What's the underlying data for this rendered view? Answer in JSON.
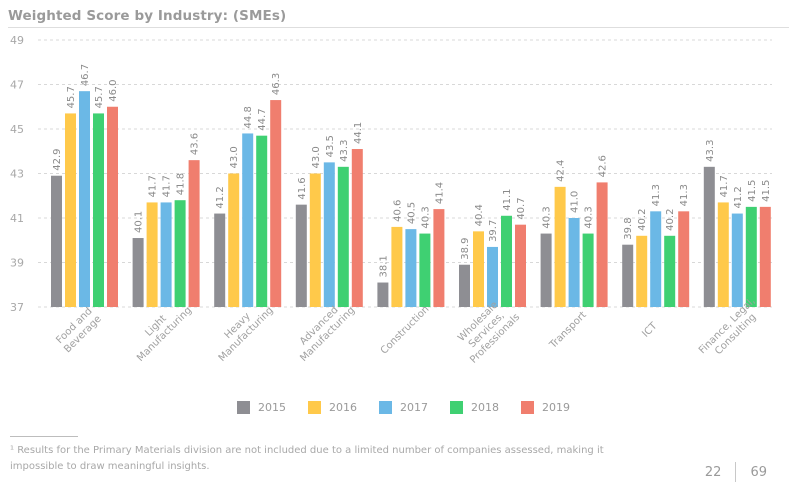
{
  "chart_data": {
    "type": "bar",
    "title": "Weighted Score by Industry: (SMEs)",
    "xlabel": "",
    "ylabel": "",
    "ylim": [
      37,
      49
    ],
    "yticks": [
      37,
      39,
      41,
      43,
      45,
      47,
      49
    ],
    "grid": true,
    "legend_position": "bottom-center",
    "categories": [
      "Food and Beverage",
      "Light Manufacturing",
      "Heavy Manufacturing",
      "Advanced Manufacturing",
      "Construction",
      "Wholesale Services, Professionals",
      "Transport",
      "ICT",
      "Finance, Legal, Consulting"
    ],
    "category_label_lines": [
      [
        "Food and",
        "Beverage"
      ],
      [
        "Light",
        "Manufacturing"
      ],
      [
        "Heavy",
        "Manufacturing"
      ],
      [
        "Advanced",
        "Manufacturing"
      ],
      [
        "Construction"
      ],
      [
        "Wholesale",
        "Services,",
        "Professionals"
      ],
      [
        "Transport"
      ],
      [
        "ICT"
      ],
      [
        "Finance, Legal,",
        "Consulting"
      ]
    ],
    "series": [
      {
        "name": "2015",
        "color": "#8E8E93",
        "values": [
          42.9,
          40.1,
          41.2,
          41.6,
          38.1,
          38.9,
          40.3,
          39.8,
          43.3
        ]
      },
      {
        "name": "2016",
        "color": "#FFC94A",
        "values": [
          45.7,
          41.7,
          43.0,
          43.0,
          40.6,
          40.4,
          42.4,
          40.2,
          41.7
        ]
      },
      {
        "name": "2017",
        "color": "#6BB8E6",
        "values": [
          46.7,
          41.7,
          44.8,
          43.5,
          40.5,
          39.7,
          41.0,
          41.3,
          41.2
        ]
      },
      {
        "name": "2018",
        "color": "#3FD072",
        "values": [
          45.7,
          41.8,
          44.7,
          43.3,
          40.3,
          41.1,
          40.3,
          40.2,
          41.5
        ]
      },
      {
        "name": "2019",
        "color": "#F07E6E",
        "values": [
          46.0,
          43.6,
          46.3,
          44.1,
          41.4,
          40.7,
          42.6,
          41.3,
          41.5
        ]
      }
    ]
  },
  "footnote": "¹ Results for the Primary Materials division are not included due to a limited number of companies assessed, making it impossible to draw meaningful insights.",
  "pagination": {
    "current": "22",
    "total": "69"
  }
}
